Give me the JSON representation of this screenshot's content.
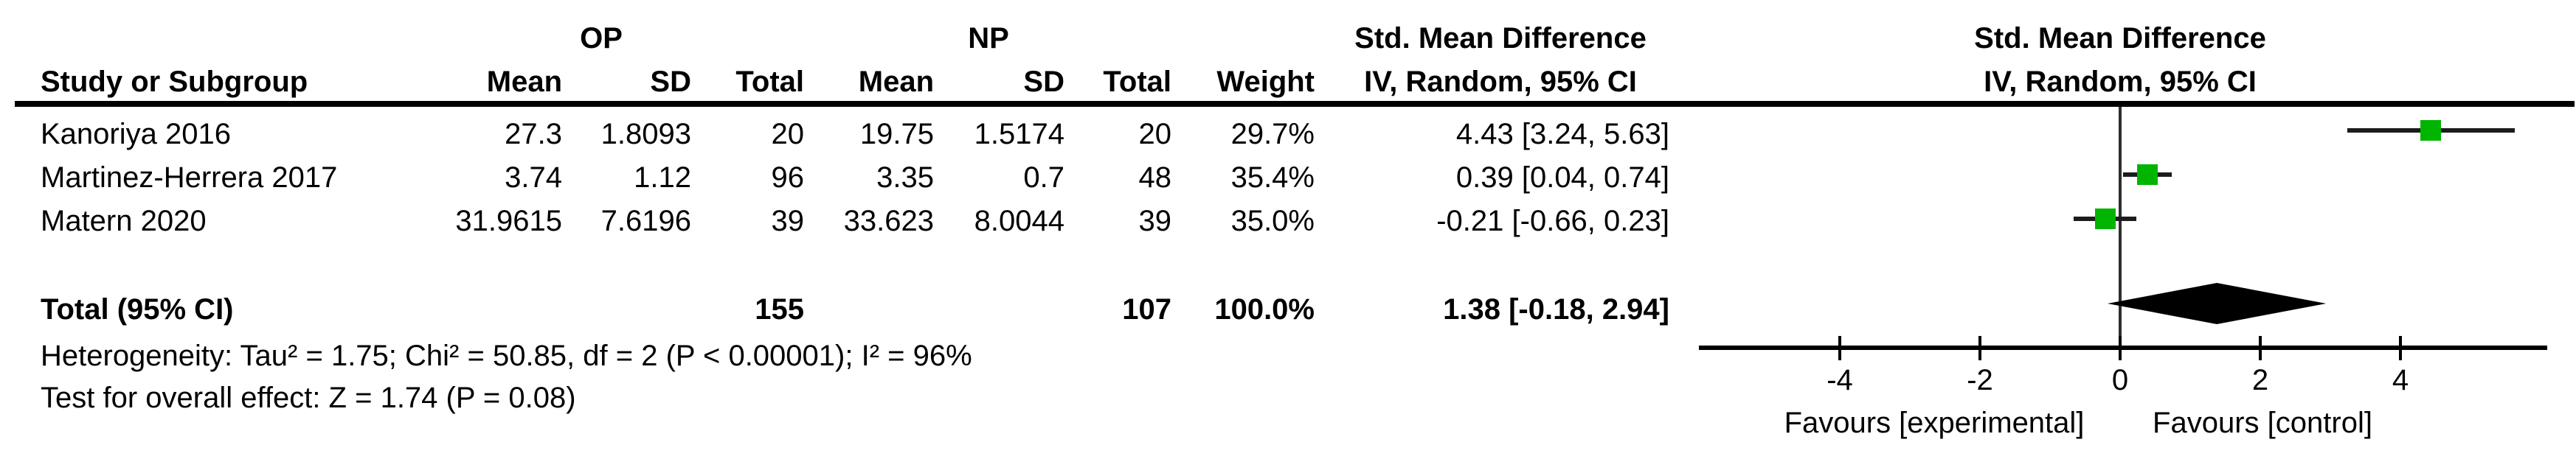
{
  "table": {
    "group1_label": "OP",
    "group2_label": "NP",
    "effect_title": "Std. Mean Difference",
    "effect_sub_title": "IV, Random, 95% CI",
    "plot_title": "Std. Mean Difference",
    "plot_sub_title": "IV, Random, 95% CI",
    "columns": {
      "study": "Study or Subgroup",
      "mean": "Mean",
      "sd": "SD",
      "total": "Total",
      "weight": "Weight"
    },
    "rows": [
      {
        "study": "Kanoriya 2016",
        "mean1": "27.3",
        "sd1": "1.8093",
        "total1": "20",
        "mean2": "19.75",
        "sd2": "1.5174",
        "total2": "20",
        "weight": "29.7%",
        "ci_text": "4.43 [3.24, 5.63]"
      },
      {
        "study": "Martinez-Herrera 2017",
        "mean1": "3.74",
        "sd1": "1.12",
        "total1": "96",
        "mean2": "3.35",
        "sd2": "0.7",
        "total2": "48",
        "weight": "35.4%",
        "ci_text": "0.39 [0.04, 0.74]"
      },
      {
        "study": "Matern 2020",
        "mean1": "31.9615",
        "sd1": "7.6196",
        "total1": "39",
        "mean2": "33.623",
        "sd2": "8.0044",
        "total2": "39",
        "weight": "35.0%",
        "ci_text": "-0.21 [-0.66, 0.23]"
      }
    ],
    "total_row": {
      "label": "Total (95% CI)",
      "total1": "155",
      "total2": "107",
      "weight": "100.0%",
      "ci_text": "1.38 [-0.18, 2.94]"
    },
    "heterogeneity": "Heterogeneity: Tau² = 1.75; Chi² = 50.85, df = 2 (P < 0.00001); I² = 96%",
    "overall_effect": "Test for overall effect: Z = 1.74 (P = 0.08)"
  },
  "chart_data": {
    "type": "scatter",
    "subtype": "forest-plot",
    "title": "Std. Mean Difference",
    "model_label": "IV, Random, 95% CI",
    "studies": [
      {
        "name": "Kanoriya 2016",
        "estimate": 4.43,
        "ci_lower": 3.24,
        "ci_upper": 5.63,
        "weight_pct": 29.7
      },
      {
        "name": "Martinez-Herrera 2017",
        "estimate": 0.39,
        "ci_lower": 0.04,
        "ci_upper": 0.74,
        "weight_pct": 35.4
      },
      {
        "name": "Matern 2020",
        "estimate": -0.21,
        "ci_lower": -0.66,
        "ci_upper": 0.23,
        "weight_pct": 35.0
      }
    ],
    "overall": {
      "name": "Total (95% CI)",
      "estimate": 1.38,
      "ci_lower": -0.18,
      "ci_upper": 2.94
    },
    "axis": {
      "ticks": [
        -4,
        -2,
        0,
        2,
        4
      ],
      "min": -6,
      "max": 6.1,
      "zero_reference_line": true
    },
    "xlabel_left": "Favours [experimental]",
    "xlabel_right": "Favours [control]",
    "marker_color": "#00b400",
    "diamond_color": "#000000"
  }
}
